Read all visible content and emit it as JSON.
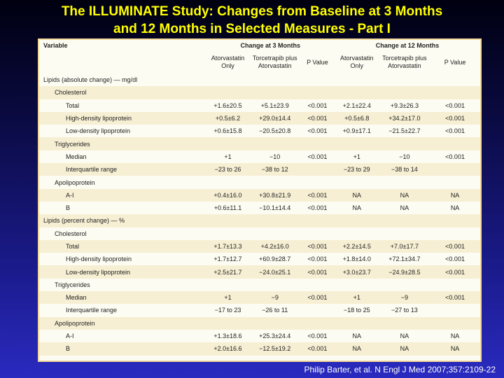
{
  "title": {
    "line1": "The ILLUMINATE  Study: Changes from Baseline at 3 Months",
    "line2": "and 12 Months in Selected Measures - Part I"
  },
  "table": {
    "header": {
      "variable": "Variable",
      "change3": "Change at 3 Months",
      "change12": "Change at 12 Months"
    },
    "subheader": {
      "ator_line1": "Atorvastatin",
      "ator_line2": "Only",
      "torc_line1": "Torcetrapib plus",
      "torc_line2": "Atorvastatin",
      "pvalue": "P Value"
    },
    "rows": [
      {
        "label": "Lipids (absolute change) — mg/dl",
        "indent": 0,
        "band": false,
        "v": [
          "",
          "",
          "",
          "",
          "",
          ""
        ]
      },
      {
        "label": "Cholesterol",
        "indent": 1,
        "band": true,
        "v": [
          "",
          "",
          "",
          "",
          "",
          ""
        ]
      },
      {
        "label": "Total",
        "indent": 2,
        "band": false,
        "v": [
          "+1.6±20.5",
          "+5.1±23.9",
          "<0.001",
          "+2.1±22.4",
          "+9.3±26.3",
          "<0.001"
        ]
      },
      {
        "label": "High-density lipoprotein",
        "indent": 2,
        "band": true,
        "v": [
          "+0.5±6.2",
          "+29.0±14.4",
          "<0.001",
          "+0.5±6.8",
          "+34.2±17.0",
          "<0.001"
        ]
      },
      {
        "label": "Low-density lipoprotein",
        "indent": 2,
        "band": false,
        "v": [
          "+0.6±15.8",
          "−20.5±20.8",
          "<0.001",
          "+0.9±17.1",
          "−21.5±22.7",
          "<0.001"
        ]
      },
      {
        "label": "Triglycerides",
        "indent": 1,
        "band": true,
        "v": [
          "",
          "",
          "",
          "",
          "",
          ""
        ]
      },
      {
        "label": "Median",
        "indent": 2,
        "band": false,
        "v": [
          "+1",
          "−10",
          "<0.001",
          "+1",
          "−10",
          "<0.001"
        ]
      },
      {
        "label": "Interquartile range",
        "indent": 2,
        "band": true,
        "v": [
          "−23 to 26",
          "−38 to 12",
          "",
          "−23 to 29",
          "−38 to 14",
          ""
        ]
      },
      {
        "label": "Apolipoprotein",
        "indent": 1,
        "band": false,
        "v": [
          "",
          "",
          "",
          "",
          "",
          ""
        ]
      },
      {
        "label": "A-I",
        "indent": 2,
        "band": true,
        "v": [
          "+0.4±16.0",
          "+30.8±21.9",
          "<0.001",
          "NA",
          "NA",
          "NA"
        ]
      },
      {
        "label": "B",
        "indent": 2,
        "band": false,
        "v": [
          "+0.6±11.1",
          "−10.1±14.4",
          "<0.001",
          "NA",
          "NA",
          "NA"
        ]
      },
      {
        "label": "Lipids (percent change) — %",
        "indent": 0,
        "band": true,
        "v": [
          "",
          "",
          "",
          "",
          "",
          ""
        ]
      },
      {
        "label": "Cholesterol",
        "indent": 1,
        "band": false,
        "v": [
          "",
          "",
          "",
          "",
          "",
          ""
        ]
      },
      {
        "label": "Total",
        "indent": 2,
        "band": true,
        "v": [
          "+1.7±13.3",
          "+4.2±16.0",
          "<0.001",
          "+2.2±14.5",
          "+7.0±17.7",
          "<0.001"
        ]
      },
      {
        "label": "High-density lipoprotein",
        "indent": 2,
        "band": false,
        "v": [
          "+1.7±12.7",
          "+60.9±28.7",
          "<0.001",
          "+1.8±14.0",
          "+72.1±34.7",
          "<0.001"
        ]
      },
      {
        "label": "Low-density lipoprotein",
        "indent": 2,
        "band": true,
        "v": [
          "+2.5±21.7",
          "−24.0±25.1",
          "<0.001",
          "+3.0±23.7",
          "−24.9±28.5",
          "<0.001"
        ]
      },
      {
        "label": "Triglycerides",
        "indent": 1,
        "band": false,
        "v": [
          "",
          "",
          "",
          "",
          "",
          ""
        ]
      },
      {
        "label": "Median",
        "indent": 2,
        "band": true,
        "v": [
          "+1",
          "−9",
          "<0.001",
          "+1",
          "−9",
          "<0.001"
        ]
      },
      {
        "label": "Interquartile range",
        "indent": 2,
        "band": false,
        "v": [
          "−17 to 23",
          "−26 to 11",
          "",
          "−18 to 25",
          "−27 to 13",
          ""
        ]
      },
      {
        "label": "Apolipoprotein",
        "indent": 1,
        "band": true,
        "v": [
          "",
          "",
          "",
          "",
          "",
          ""
        ]
      },
      {
        "label": "A-I",
        "indent": 2,
        "band": false,
        "v": [
          "+1.3±18.6",
          "+25.3±24.4",
          "<0.001",
          "NA",
          "NA",
          "NA"
        ]
      },
      {
        "label": "B",
        "indent": 2,
        "band": true,
        "v": [
          "+2.0±16.6",
          "−12.5±19.2",
          "<0.001",
          "NA",
          "NA",
          "NA"
        ]
      }
    ]
  },
  "citation": "Philip Barter, et al. N Engl J Med 2007;357:2109-22",
  "colors": {
    "title": "#ffff00",
    "band": "#f6efd3",
    "panel": "#fdfcf2",
    "panel_border": "#f2d99a"
  }
}
